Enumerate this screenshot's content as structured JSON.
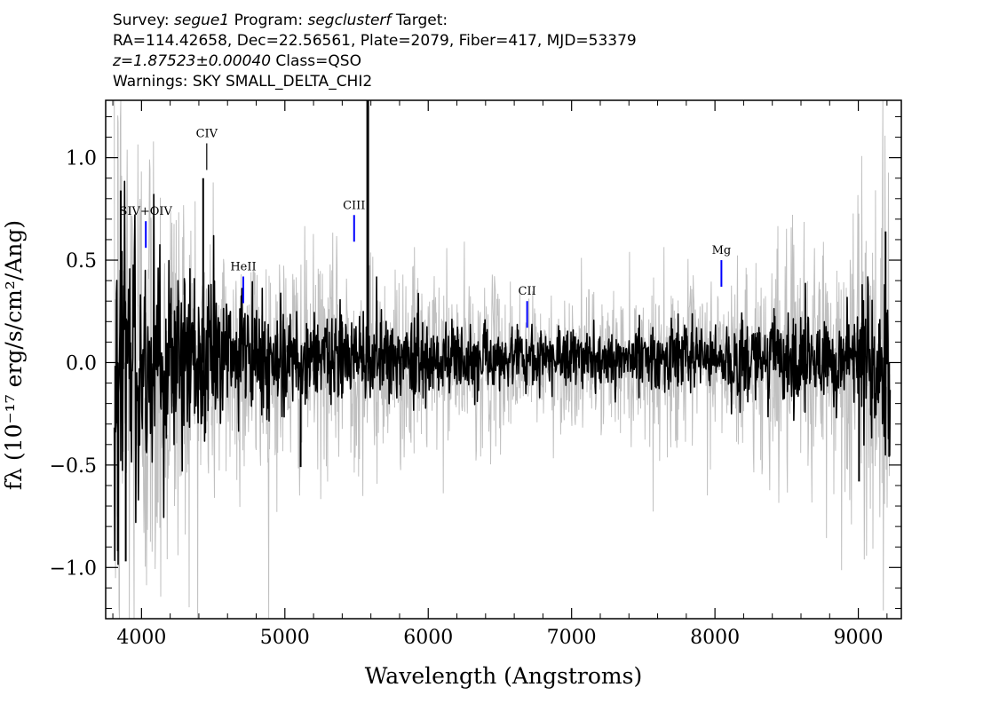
{
  "header": {
    "line1": {
      "survey_label": "Survey:",
      "survey": "segue1",
      "program_label": "Program:",
      "program": "segclusterf",
      "target_label": "Target:"
    },
    "line2": "RA=114.42658, Dec=22.56561, Plate=2079, Fiber=417, MJD=53379",
    "line3": {
      "z": "z=1.87523±0.00040",
      "class": "Class=QSO"
    },
    "line4": "Warnings: SKY SMALL_DELTA_CHI2"
  },
  "chart_data": {
    "type": "line",
    "xlabel": "Wavelength (Angstroms)",
    "ylabel": "fλ (10⁻¹⁷ erg/s/cm²/Ang)",
    "xlim": [
      3750,
      9300
    ],
    "ylim": [
      -1.25,
      1.28
    ],
    "x_ticks": [
      4000,
      5000,
      6000,
      7000,
      8000,
      9000
    ],
    "x_tick_labels": [
      "4000",
      "5000",
      "6000",
      "7000",
      "8000",
      "9000"
    ],
    "y_ticks": [
      -1.0,
      -0.5,
      0.0,
      0.5,
      1.0
    ],
    "y_tick_labels": [
      "−1.0",
      "−0.5",
      "0.0",
      "0.5",
      "1.0"
    ],
    "grid": false,
    "series": [
      {
        "style": "error-envelope",
        "color": "#c0c0c0",
        "x": [
          3800,
          3900,
          4000,
          4200,
          4400,
          4600,
          4800,
          5000,
          5200,
          5500,
          5800,
          6000,
          6400,
          6800,
          7200,
          7600,
          8000,
          8400,
          8800,
          9000,
          9200
        ],
        "sigma": [
          0.95,
          0.85,
          0.7,
          0.55,
          0.42,
          0.34,
          0.31,
          0.29,
          0.27,
          0.26,
          0.25,
          0.23,
          0.2,
          0.17,
          0.17,
          0.19,
          0.22,
          0.27,
          0.34,
          0.45,
          0.5
        ]
      },
      {
        "style": "flux",
        "color": "#000000",
        "x": [
          3800,
          3900,
          4000,
          4200,
          4400,
          4600,
          4800,
          5000,
          5200,
          5500,
          5800,
          6000,
          6400,
          6800,
          7200,
          7600,
          8000,
          8400,
          8800,
          9000,
          9200
        ],
        "sigma": [
          0.45,
          0.4,
          0.32,
          0.26,
          0.2,
          0.17,
          0.15,
          0.13,
          0.12,
          0.11,
          0.1,
          0.09,
          0.08,
          0.07,
          0.07,
          0.08,
          0.09,
          0.11,
          0.13,
          0.16,
          0.2
        ]
      }
    ],
    "spikes": [
      {
        "x": 3835,
        "y": -0.92
      },
      {
        "x": 3855,
        "y": 0.84
      },
      {
        "x": 3890,
        "y": -0.97
      },
      {
        "x": 4430,
        "y": 0.9
      },
      {
        "x": 5110,
        "y": -0.51
      },
      {
        "x": 5578,
        "y": 1.28
      },
      {
        "x": 9005,
        "y": -0.58
      },
      {
        "x": 9190,
        "y": 0.64
      },
      {
        "x": 9215,
        "y": -0.46
      }
    ],
    "emission_lines": [
      {
        "label": "SIV+OIV",
        "x": 4030,
        "y0": 0.56,
        "y1": 0.69,
        "color": "#0000ff"
      },
      {
        "label": "CIV",
        "x": 4455,
        "y0": 0.94,
        "y1": 1.07,
        "color": "#000000"
      },
      {
        "label": "HeII",
        "x": 4710,
        "y0": 0.29,
        "y1": 0.42,
        "color": "#0000ff"
      },
      {
        "label": "CIII",
        "x": 5483,
        "y0": 0.59,
        "y1": 0.72,
        "color": "#0000ff"
      },
      {
        "label": "CII",
        "x": 6690,
        "y0": 0.17,
        "y1": 0.3,
        "color": "#0000ff"
      },
      {
        "label": "Mg",
        "x": 8045,
        "y0": 0.37,
        "y1": 0.5,
        "color": "#0000ff"
      }
    ]
  }
}
